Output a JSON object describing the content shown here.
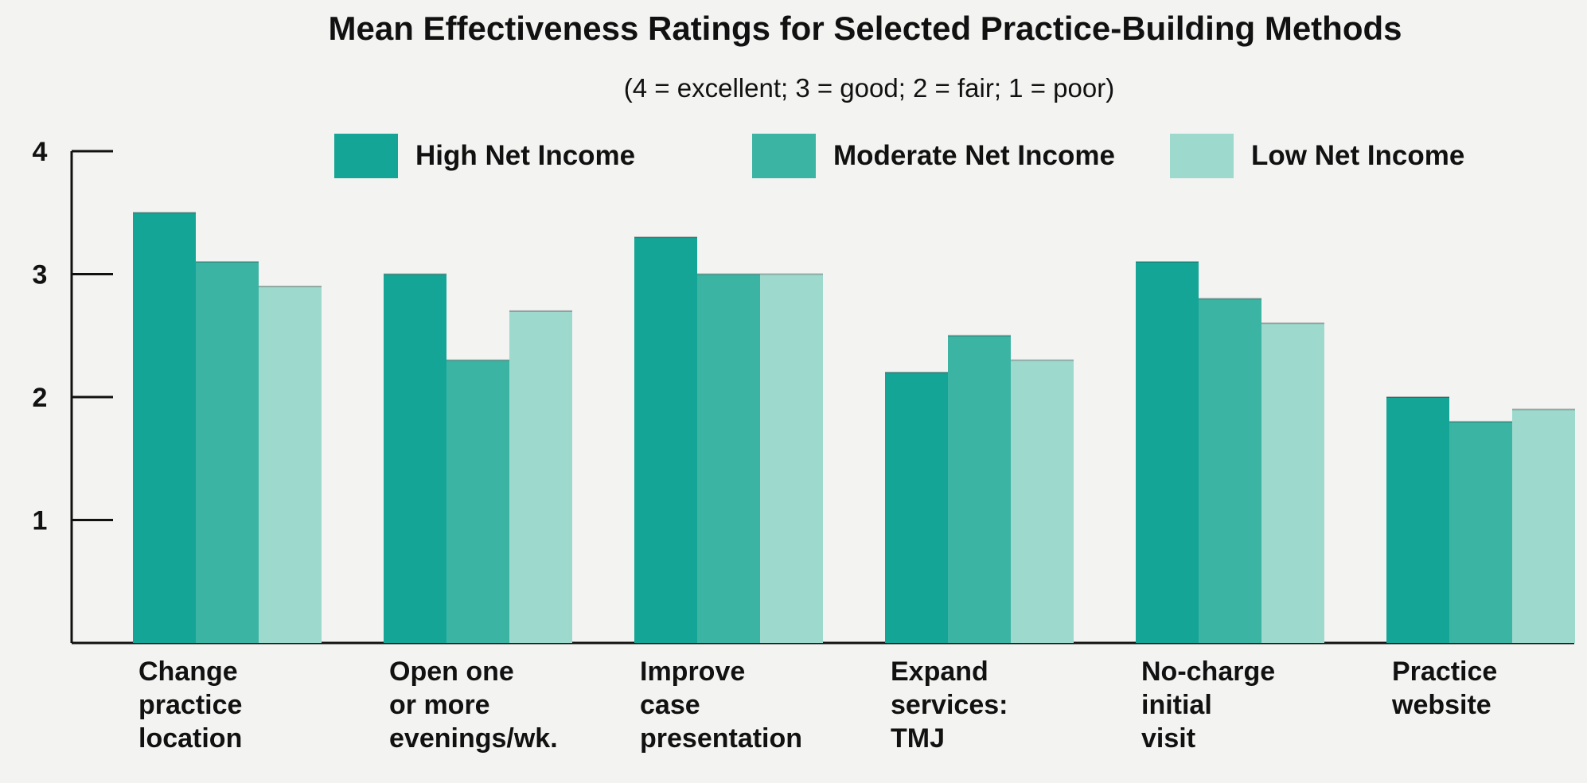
{
  "chart_data": {
    "type": "bar",
    "title": "Mean Effectiveness Ratings for Selected Practice-Building Methods",
    "subtitle": "(4 = excellent; 3 = good; 2 = fair; 1 = poor)",
    "categories": [
      [
        "Change",
        "practice",
        "location"
      ],
      [
        "Open one",
        "or more",
        "evenings/wk."
      ],
      [
        "Improve",
        "case",
        "presentation"
      ],
      [
        "Expand",
        "services:",
        "TMJ"
      ],
      [
        "No-charge",
        "initial",
        "visit"
      ],
      [
        "Practice",
        "website"
      ]
    ],
    "series": [
      {
        "name": "High Net Income",
        "color": "#15a597",
        "values": [
          3.5,
          3.0,
          3.3,
          2.2,
          3.1,
          2.0
        ]
      },
      {
        "name": "Moderate Net Income",
        "color": "#3cb4a4",
        "values": [
          3.1,
          2.3,
          3.0,
          2.5,
          2.8,
          1.8
        ]
      },
      {
        "name": "Low Net Income",
        "color": "#9ed9cd",
        "values": [
          2.9,
          2.7,
          3.0,
          2.3,
          2.6,
          1.9
        ]
      }
    ],
    "yticks": [
      1,
      2,
      3,
      4
    ],
    "ylim": [
      0,
      4
    ],
    "xlabel": "",
    "ylabel": "",
    "grid": false,
    "legend_position": "top"
  }
}
